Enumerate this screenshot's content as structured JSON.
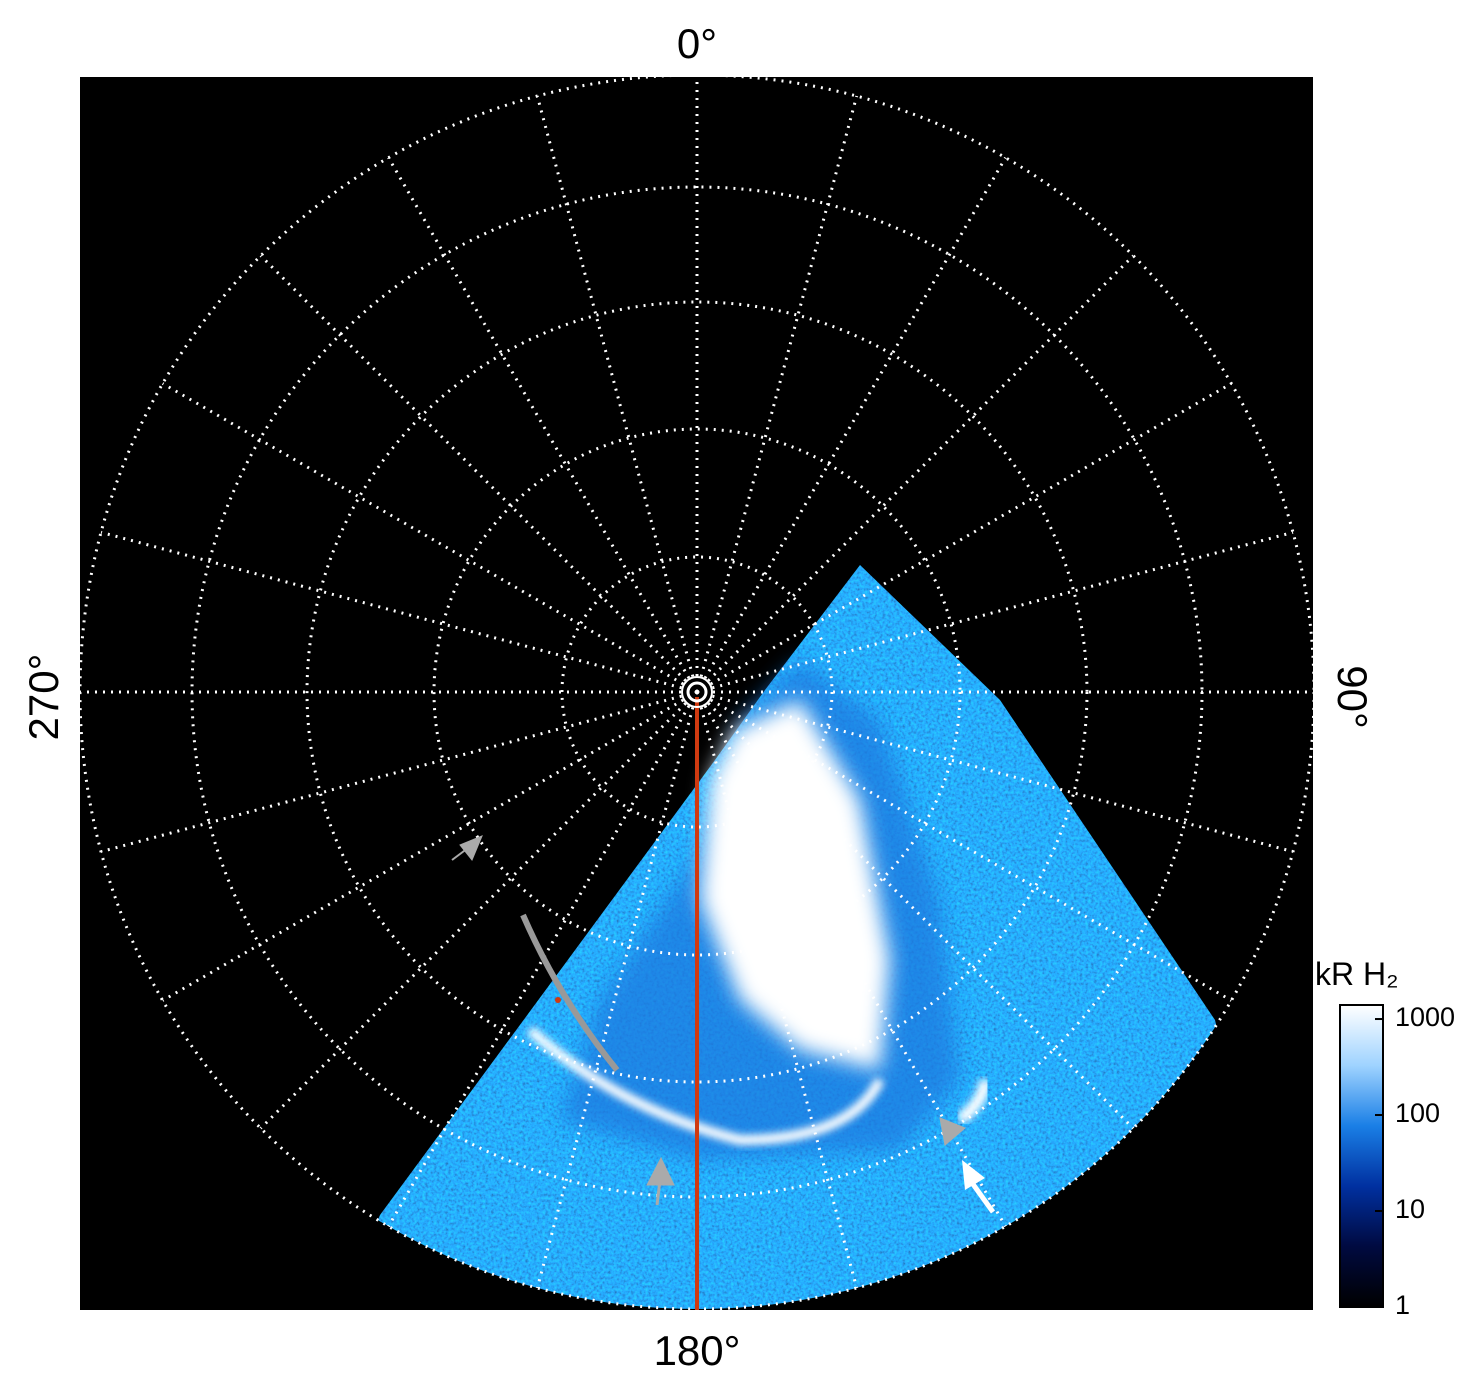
{
  "axis_labels": {
    "top": "0°",
    "right": "90°",
    "bottom": "180°",
    "left": "270°"
  },
  "colorbar": {
    "title": "kR H₂",
    "scale": "log",
    "lim": [
      1,
      1400
    ],
    "ticks": [
      1,
      10,
      100,
      1000
    ],
    "colors": [
      "#000000",
      "#000a40",
      "#0030a0",
      "#1a7fe6",
      "#9fd3ff",
      "#ffffff"
    ]
  }
}
